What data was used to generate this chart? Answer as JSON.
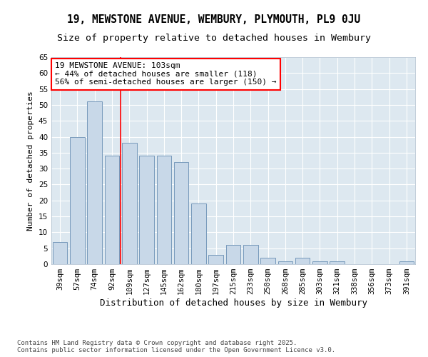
{
  "title": "19, MEWSTONE AVENUE, WEMBURY, PLYMOUTH, PL9 0JU",
  "subtitle": "Size of property relative to detached houses in Wembury",
  "xlabel": "Distribution of detached houses by size in Wembury",
  "ylabel": "Number of detached properties",
  "categories": [
    "39sqm",
    "57sqm",
    "74sqm",
    "92sqm",
    "109sqm",
    "127sqm",
    "145sqm",
    "162sqm",
    "180sqm",
    "197sqm",
    "215sqm",
    "233sqm",
    "250sqm",
    "268sqm",
    "285sqm",
    "303sqm",
    "321sqm",
    "338sqm",
    "356sqm",
    "373sqm",
    "391sqm"
  ],
  "values": [
    7,
    40,
    51,
    34,
    38,
    34,
    34,
    32,
    19,
    3,
    6,
    6,
    2,
    1,
    2,
    1,
    1,
    0,
    0,
    0,
    1
  ],
  "bar_color": "#c8d8e8",
  "bar_edge_color": "#7799bb",
  "vline_x": 3.5,
  "vline_color": "red",
  "annotation_text": "19 MEWSTONE AVENUE: 103sqm\n← 44% of detached houses are smaller (118)\n56% of semi-detached houses are larger (150) →",
  "annotation_box_color": "white",
  "annotation_box_edge_color": "red",
  "ylim": [
    0,
    65
  ],
  "yticks": [
    0,
    5,
    10,
    15,
    20,
    25,
    30,
    35,
    40,
    45,
    50,
    55,
    60,
    65
  ],
  "background_color": "#dde8f0",
  "footer": "Contains HM Land Registry data © Crown copyright and database right 2025.\nContains public sector information licensed under the Open Government Licence v3.0.",
  "title_fontsize": 10.5,
  "subtitle_fontsize": 9.5,
  "xlabel_fontsize": 9,
  "ylabel_fontsize": 8,
  "tick_fontsize": 7.5,
  "annotation_fontsize": 8,
  "footer_fontsize": 6.5
}
